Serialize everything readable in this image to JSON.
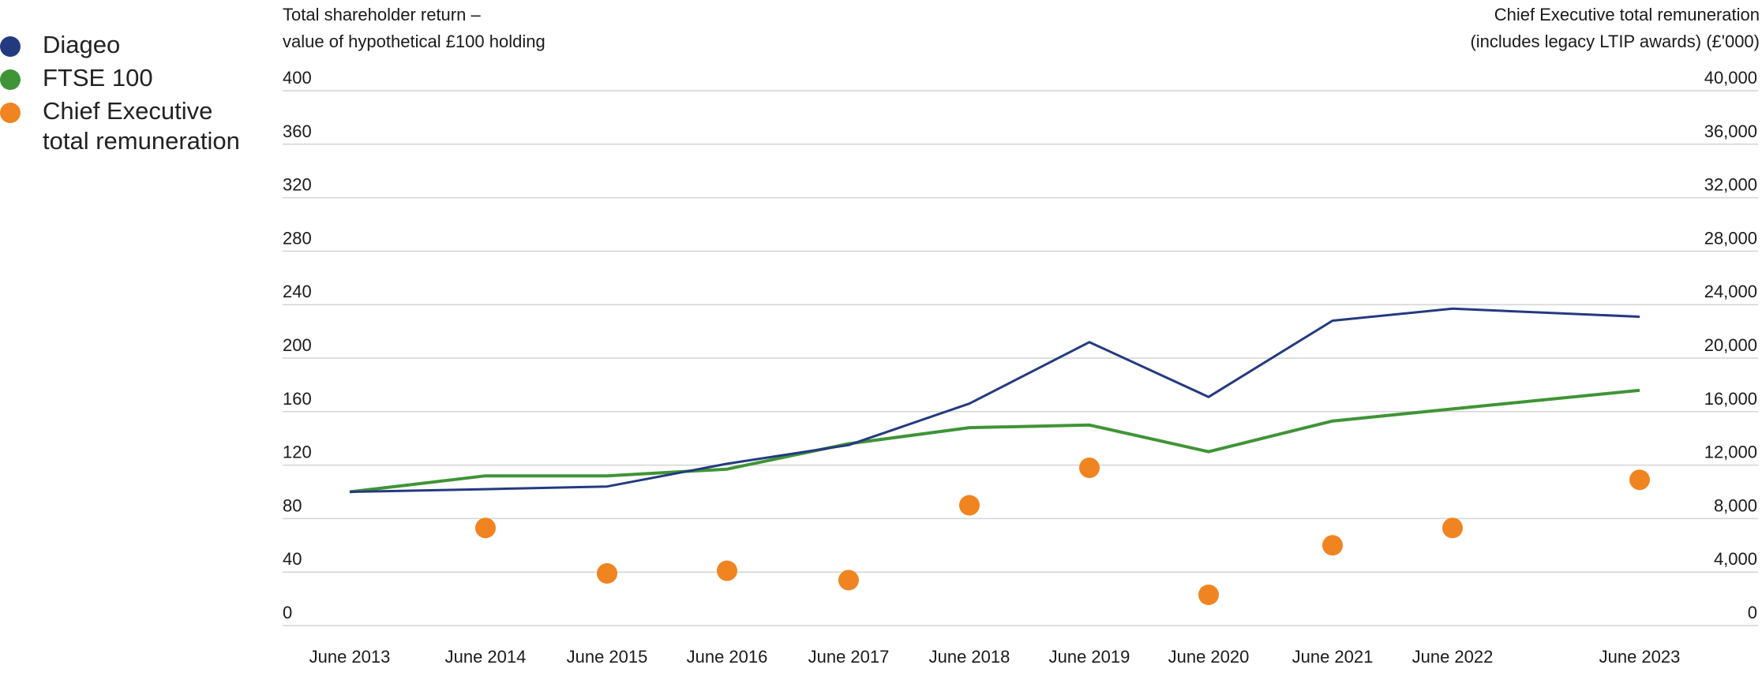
{
  "legend": {
    "diageo": "Diageo",
    "ftse": "FTSE 100",
    "ceo_line1": "Chief Executive",
    "ceo_line2": "total remuneration"
  },
  "left_axis_title": {
    "line1": "Total shareholder return –",
    "line2": "value of hypothetical £100 holding"
  },
  "right_axis_title": {
    "line1": "Chief Executive total remuneration",
    "line2": "(includes legacy LTIP awards) (£'000)"
  },
  "colors": {
    "diageo": "#243a80",
    "ftse": "#3f9436",
    "ceo": "#f08421",
    "grid": "#d4d4d4"
  },
  "chart_data": {
    "type": "line",
    "categories": [
      "June 2013",
      "June 2014",
      "June 2015",
      "June 2016",
      "June 2017",
      "June 2018",
      "June 2019",
      "June 2020",
      "June 2021",
      "June 2022",
      "June 2023"
    ],
    "left_axis": {
      "range": [
        0,
        400
      ],
      "ticks": [
        "400",
        "360",
        "320",
        "280",
        "240",
        "200",
        "160",
        "120",
        "80",
        "40",
        "0"
      ]
    },
    "right_axis": {
      "range": [
        0,
        40000
      ],
      "ticks": [
        "40,000",
        "36,000",
        "32,000",
        "28,000",
        "24,000",
        "20,000",
        "16,000",
        "12,000",
        "8,000",
        "4,000",
        "0"
      ]
    },
    "series": [
      {
        "name": "Diageo",
        "type": "line",
        "axis": "left",
        "values": [
          100,
          102,
          104,
          121,
          135,
          166,
          212,
          171,
          228,
          237,
          231
        ]
      },
      {
        "name": "FTSE 100",
        "type": "line",
        "axis": "left",
        "values": [
          100,
          112,
          112,
          117,
          136,
          148,
          150,
          130,
          153,
          162,
          176
        ]
      },
      {
        "name": "Chief Executive total remuneration",
        "type": "scatter",
        "axis": "right",
        "x_start_index": 1,
        "values": [
          7300,
          3900,
          4100,
          3400,
          9000,
          11800,
          2300,
          6000,
          7300,
          10900
        ]
      }
    ]
  }
}
